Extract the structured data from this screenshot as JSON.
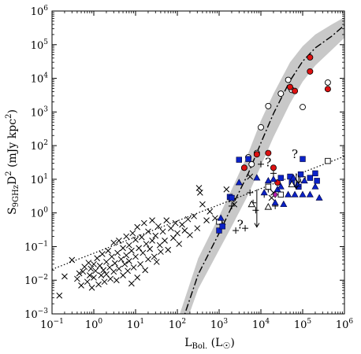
{
  "chart_data": {
    "type": "scatter",
    "title": "",
    "xlabel": "L_Bol. (L_☉)",
    "ylabel": "S_9GHz D^2 (mJy kpc^2)",
    "x_scale": "log",
    "y_scale": "log",
    "xlim": [
      0.1,
      1000000
    ],
    "ylim": [
      0.001,
      1000000
    ],
    "x_ticks": [
      {
        "value": 0.1,
        "base": "10",
        "exp": "−1"
      },
      {
        "value": 1,
        "base": "10",
        "exp": "0"
      },
      {
        "value": 10,
        "base": "10",
        "exp": "1"
      },
      {
        "value": 100,
        "base": "10",
        "exp": "2"
      },
      {
        "value": 1000,
        "base": "10",
        "exp": "3"
      },
      {
        "value": 10000,
        "base": "10",
        "exp": "4"
      },
      {
        "value": 100000,
        "base": "10",
        "exp": "5"
      },
      {
        "value": 1000000,
        "base": "10",
        "exp": "6"
      }
    ],
    "y_ticks": [
      {
        "value": 0.001,
        "base": "10",
        "exp": "−3"
      },
      {
        "value": 0.01,
        "base": "10",
        "exp": "−2"
      },
      {
        "value": 0.1,
        "base": "10",
        "exp": "−1"
      },
      {
        "value": 1,
        "base": "10",
        "exp": "0"
      },
      {
        "value": 10,
        "base": "10",
        "exp": "1"
      },
      {
        "value": 100,
        "base": "10",
        "exp": "2"
      },
      {
        "value": 1000,
        "base": "10",
        "exp": "3"
      },
      {
        "value": 10000,
        "base": "10",
        "exp": "4"
      },
      {
        "value": 100000,
        "base": "10",
        "exp": "5"
      },
      {
        "value": 1000000,
        "base": "10",
        "exp": "6"
      }
    ],
    "grid": false,
    "legend": "none",
    "colors": {
      "band": "#c8c8c8",
      "red": "#dd1111",
      "blue": "#0b22c7",
      "magenta": "#b81fae",
      "black": "#000000"
    },
    "band": [
      {
        "x": 100,
        "lo": 0.0001,
        "hi": 0.0006
      },
      {
        "x": 316,
        "lo": 0.0055,
        "hi": 0.045
      },
      {
        "x": 1000,
        "lo": 0.08,
        "hi": 0.8
      },
      {
        "x": 2000,
        "lo": 0.4,
        "hi": 5
      },
      {
        "x": 5000,
        "lo": 3.5,
        "hi": 60
      },
      {
        "x": 10000,
        "lo": 25,
        "hi": 550
      },
      {
        "x": 20000,
        "lo": 180,
        "hi": 3500
      },
      {
        "x": 50000,
        "lo": 1800,
        "hi": 30000
      },
      {
        "x": 100000,
        "lo": 8000,
        "hi": 90000
      },
      {
        "x": 200000,
        "lo": 24000,
        "hi": 200000
      },
      {
        "x": 500000,
        "lo": 70000,
        "hi": 400000
      },
      {
        "x": 1000000,
        "lo": 160000,
        "hi": 650000
      }
    ],
    "dashdot_curve": [
      [
        100,
        0.00022
      ],
      [
        316,
        0.015
      ],
      [
        1000,
        0.25
      ],
      [
        2000,
        1.5
      ],
      [
        5000,
        15
      ],
      [
        10000,
        120
      ],
      [
        20000,
        900
      ],
      [
        50000,
        8500
      ],
      [
        100000,
        32000
      ],
      [
        200000,
        80000
      ],
      [
        500000,
        180000
      ],
      [
        1000000,
        380000
      ]
    ],
    "dotted_line": [
      [
        0.1,
        0.021
      ],
      [
        1000000,
        48
      ]
    ],
    "series": [
      {
        "marker": "x",
        "points": [
          [
            0.15,
            0.0035
          ],
          [
            0.2,
            0.013
          ],
          [
            0.3,
            0.04
          ],
          [
            0.4,
            0.011
          ],
          [
            0.45,
            0.016
          ],
          [
            0.5,
            0.007
          ],
          [
            0.55,
            0.018
          ],
          [
            0.6,
            0.025
          ],
          [
            0.7,
            0.009
          ],
          [
            0.75,
            0.033
          ],
          [
            0.8,
            0.014
          ],
          [
            0.85,
            0.022
          ],
          [
            0.9,
            0.006
          ],
          [
            1.0,
            0.012
          ],
          [
            1.0,
            0.03
          ],
          [
            1.1,
            0.019
          ],
          [
            1.2,
            0.045
          ],
          [
            1.3,
            0.0075
          ],
          [
            1.4,
            0.027
          ],
          [
            1.5,
            0.014
          ],
          [
            1.6,
            0.06
          ],
          [
            1.7,
            0.02
          ],
          [
            1.8,
            0.009
          ],
          [
            2.0,
            0.035
          ],
          [
            2.0,
            0.015
          ],
          [
            2.2,
            0.075
          ],
          [
            2.4,
            0.024
          ],
          [
            2.5,
            0.011
          ],
          [
            2.7,
            0.05
          ],
          [
            3.0,
            0.018
          ],
          [
            3.0,
            0.13
          ],
          [
            3.2,
            0.032
          ],
          [
            3.5,
            0.01
          ],
          [
            3.7,
            0.065
          ],
          [
            4.0,
            0.022
          ],
          [
            4.0,
            0.15
          ],
          [
            4.5,
            0.042
          ],
          [
            5.0,
            0.014
          ],
          [
            5.0,
            0.09
          ],
          [
            5.5,
            0.03
          ],
          [
            6.0,
            0.2
          ],
          [
            6.0,
            0.055
          ],
          [
            6.5,
            0.019
          ],
          [
            7.0,
            0.11
          ],
          [
            7.0,
            0.037
          ],
          [
            8.0,
            0.008
          ],
          [
            8.0,
            0.075
          ],
          [
            8.5,
            0.25
          ],
          [
            9.0,
            0.024
          ],
          [
            10,
            0.16
          ],
          [
            10,
            0.05
          ],
          [
            11,
            0.012
          ],
          [
            11,
            0.38
          ],
          [
            12,
            0.09
          ],
          [
            13,
            0.03
          ],
          [
            14,
            0.19
          ],
          [
            15,
            0.065
          ],
          [
            16,
            0.5
          ],
          [
            17,
            0.02
          ],
          [
            18,
            0.12
          ],
          [
            20,
            0.042
          ],
          [
            20,
            0.28
          ],
          [
            22,
            0.085
          ],
          [
            25,
            0.15
          ],
          [
            25,
            0.6
          ],
          [
            28,
            0.05
          ],
          [
            30,
            0.21
          ],
          [
            32,
            0.035
          ],
          [
            35,
            0.4
          ],
          [
            38,
            0.11
          ],
          [
            40,
            0.07
          ],
          [
            45,
            0.28
          ],
          [
            50,
            0.15
          ],
          [
            55,
            0.6
          ],
          [
            60,
            0.08
          ],
          [
            70,
            0.35
          ],
          [
            80,
            0.18
          ],
          [
            90,
            0.5
          ],
          [
            100,
            0.25
          ],
          [
            110,
            0.12
          ],
          [
            130,
            0.45
          ],
          [
            150,
            0.3
          ],
          [
            180,
            0.65
          ],
          [
            200,
            0.22
          ],
          [
            250,
            0.8
          ],
          [
            300,
            0.35
          ],
          [
            330,
            5.5
          ],
          [
            350,
            4
          ],
          [
            400,
            1.8
          ],
          [
            500,
            0.6
          ],
          [
            600,
            1.1
          ],
          [
            800,
            0.7
          ],
          [
            1200,
            0.4
          ],
          [
            1500,
            5
          ],
          [
            2000,
            2.5
          ],
          [
            2300,
            1.8
          ],
          [
            5500,
            12
          ],
          [
            18000,
            2.8
          ],
          [
            20000,
            4
          ]
        ]
      },
      {
        "marker": "plus",
        "points": [
          [
            1200,
            0.45
          ],
          [
            2000,
            1.6
          ],
          [
            2500,
            0.3
          ],
          [
            4200,
            0.35
          ],
          [
            5500,
            4
          ],
          [
            6500,
            2
          ],
          [
            7500,
            1.2
          ],
          [
            10000,
            28
          ],
          [
            12000,
            3.5
          ],
          [
            15000,
            5
          ],
          [
            20000,
            15
          ],
          [
            22000,
            1.6
          ]
        ]
      },
      {
        "marker": "circle_open",
        "points": [
          [
            5000,
            45
          ],
          [
            6000,
            28
          ],
          [
            8000,
            60
          ],
          [
            10000,
            350
          ],
          [
            15000,
            1500
          ],
          [
            30000,
            3500
          ],
          [
            45000,
            9000
          ],
          [
            55000,
            4500
          ],
          [
            100000,
            1400
          ],
          [
            400000,
            7500
          ]
        ]
      },
      {
        "marker": "circle_red",
        "points": [
          [
            4000,
            22
          ],
          [
            8000,
            55
          ],
          [
            15000,
            60
          ],
          [
            20000,
            22
          ],
          [
            25000,
            8
          ],
          [
            50000,
            5500
          ],
          [
            65000,
            4200
          ],
          [
            150000,
            42000
          ],
          [
            150000,
            16000
          ],
          [
            400000,
            4800
          ]
        ]
      },
      {
        "marker": "square_open",
        "points": [
          [
            1000,
            0.55
          ],
          [
            15000,
            6
          ],
          [
            30000,
            3.5
          ],
          [
            100000,
            10
          ],
          [
            400000,
            35
          ]
        ]
      },
      {
        "marker": "square_blue",
        "points": [
          [
            1000,
            0.3
          ],
          [
            1200,
            0.4
          ],
          [
            1800,
            3
          ],
          [
            2000,
            2.8
          ],
          [
            3000,
            38
          ],
          [
            5000,
            40
          ],
          [
            30000,
            11
          ],
          [
            50000,
            12
          ],
          [
            55000,
            8
          ],
          [
            80000,
            6
          ],
          [
            90000,
            14
          ],
          [
            100000,
            40
          ],
          [
            150000,
            11
          ],
          [
            200000,
            15
          ],
          [
            220000,
            9
          ]
        ]
      },
      {
        "marker": "triangle_open",
        "points": [
          [
            6000,
            1.8
          ],
          [
            15000,
            1.5
          ],
          [
            55000,
            7
          ]
        ]
      },
      {
        "marker": "triangle_blue",
        "points": [
          [
            1100,
            0.7
          ],
          [
            3000,
            8
          ],
          [
            8000,
            11
          ],
          [
            12000,
            4
          ],
          [
            15000,
            9
          ],
          [
            20000,
            10
          ],
          [
            22000,
            2
          ],
          [
            25000,
            5
          ],
          [
            30000,
            6
          ],
          [
            35000,
            1.8
          ],
          [
            45000,
            3.5
          ],
          [
            60000,
            11
          ],
          [
            65000,
            3.5
          ],
          [
            75000,
            7
          ],
          [
            100000,
            3.5
          ],
          [
            110000,
            9
          ],
          [
            150000,
            3.5
          ],
          [
            200000,
            6
          ],
          [
            250000,
            2.8
          ]
        ]
      },
      {
        "marker": "diamond_magenta",
        "points": [
          [
            22000,
            3.5
          ]
        ]
      }
    ],
    "annotations": [
      {
        "text": "?",
        "x": 3200,
        "y": 0.34
      },
      {
        "text": "?",
        "x": 15000,
        "y": 24
      },
      {
        "text": "?",
        "x": 65000,
        "y": 42
      }
    ],
    "upper_limit_arrows": [
      {
        "x": 8000,
        "y_from": 5,
        "y_to": 0.38
      },
      {
        "x": 70000,
        "y_from": 15,
        "y_to": 5.2
      },
      {
        "x": 80000,
        "y_from": 13,
        "y_to": 7.5
      }
    ]
  }
}
